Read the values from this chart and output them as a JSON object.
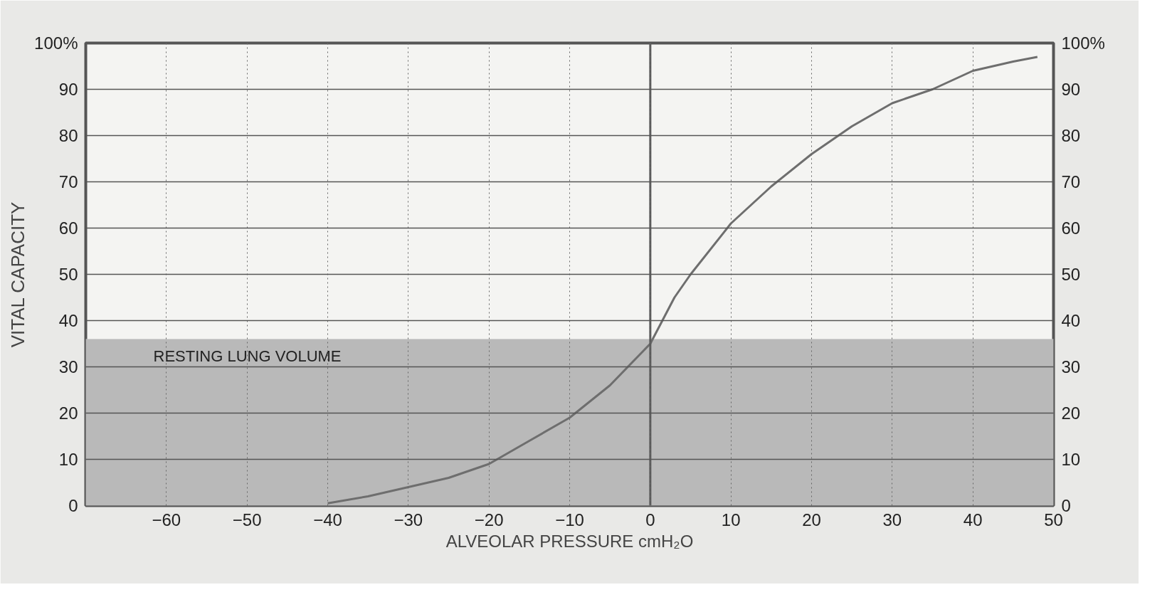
{
  "chart_data": {
    "type": "line",
    "xlabel": "ALVEOLAR PRESSURE cmH₂O",
    "ylabel": "VITAL CAPACITY",
    "x": [
      -40,
      -35,
      -30,
      -25,
      -20,
      -15,
      -10,
      -5,
      0,
      3,
      5,
      10,
      15,
      20,
      25,
      30,
      35,
      40,
      45,
      48
    ],
    "series": [
      {
        "color": "#6e6e6e",
        "values": [
          0.5,
          2,
          4,
          6,
          9,
          14,
          19,
          26,
          35,
          45,
          50,
          61,
          69,
          76,
          82,
          87,
          90,
          94,
          96,
          97
        ]
      }
    ],
    "xlim": [
      -70,
      50
    ],
    "xticks": [
      -60,
      -50,
      -40,
      -30,
      -20,
      -10,
      0,
      10,
      20,
      30,
      40,
      50
    ],
    "ylim": [
      0,
      100
    ],
    "yticks": [
      0,
      10,
      20,
      30,
      40,
      50,
      60,
      70,
      80,
      90,
      {
        "value": 100,
        "label": "100%"
      }
    ],
    "y2lim": [
      0,
      100
    ],
    "y2ticks": [
      0,
      10,
      20,
      30,
      40,
      50,
      60,
      70,
      80,
      90,
      {
        "value": 100,
        "label": "100%"
      }
    ],
    "ref_lines": [
      {
        "axis": "x",
        "value": 0,
        "color": "#5a5a5a"
      }
    ],
    "bands": [
      {
        "axis": "y",
        "from": 0,
        "to": 36,
        "label": "RESTING LUNG VOLUME",
        "color": "#b9b9b9"
      }
    ],
    "grid": true,
    "marker": "none",
    "line_style": "solid"
  }
}
